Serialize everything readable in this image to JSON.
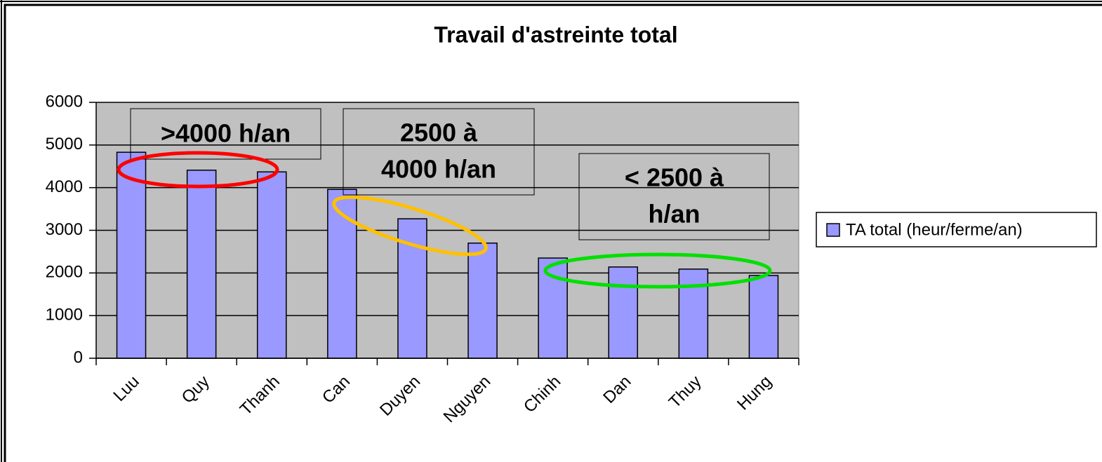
{
  "chart_data": {
    "type": "bar",
    "title": "Travail d'astreinte total",
    "categories": [
      "Luu",
      "Quy",
      "Thanh",
      "Can",
      "Duyen",
      "Nguyen",
      "Chinh",
      "Dan",
      "Thuy",
      "Hung"
    ],
    "series": [
      {
        "name": "TA total (heur/ferme/an)",
        "color": "#9999ff",
        "values": [
          4830,
          4410,
          4370,
          3960,
          3270,
          2700,
          2350,
          2140,
          2090,
          1940
        ]
      }
    ],
    "ylim": [
      0,
      6000
    ],
    "yticks": [
      0,
      1000,
      2000,
      3000,
      4000,
      5000,
      6000
    ],
    "grid": true,
    "legend": "right",
    "annotations": [
      [
        ">4000 h/an"
      ],
      [
        "2500 à",
        "4000 h/an"
      ],
      [
        "< 2500 à",
        "h/an"
      ]
    ]
  }
}
